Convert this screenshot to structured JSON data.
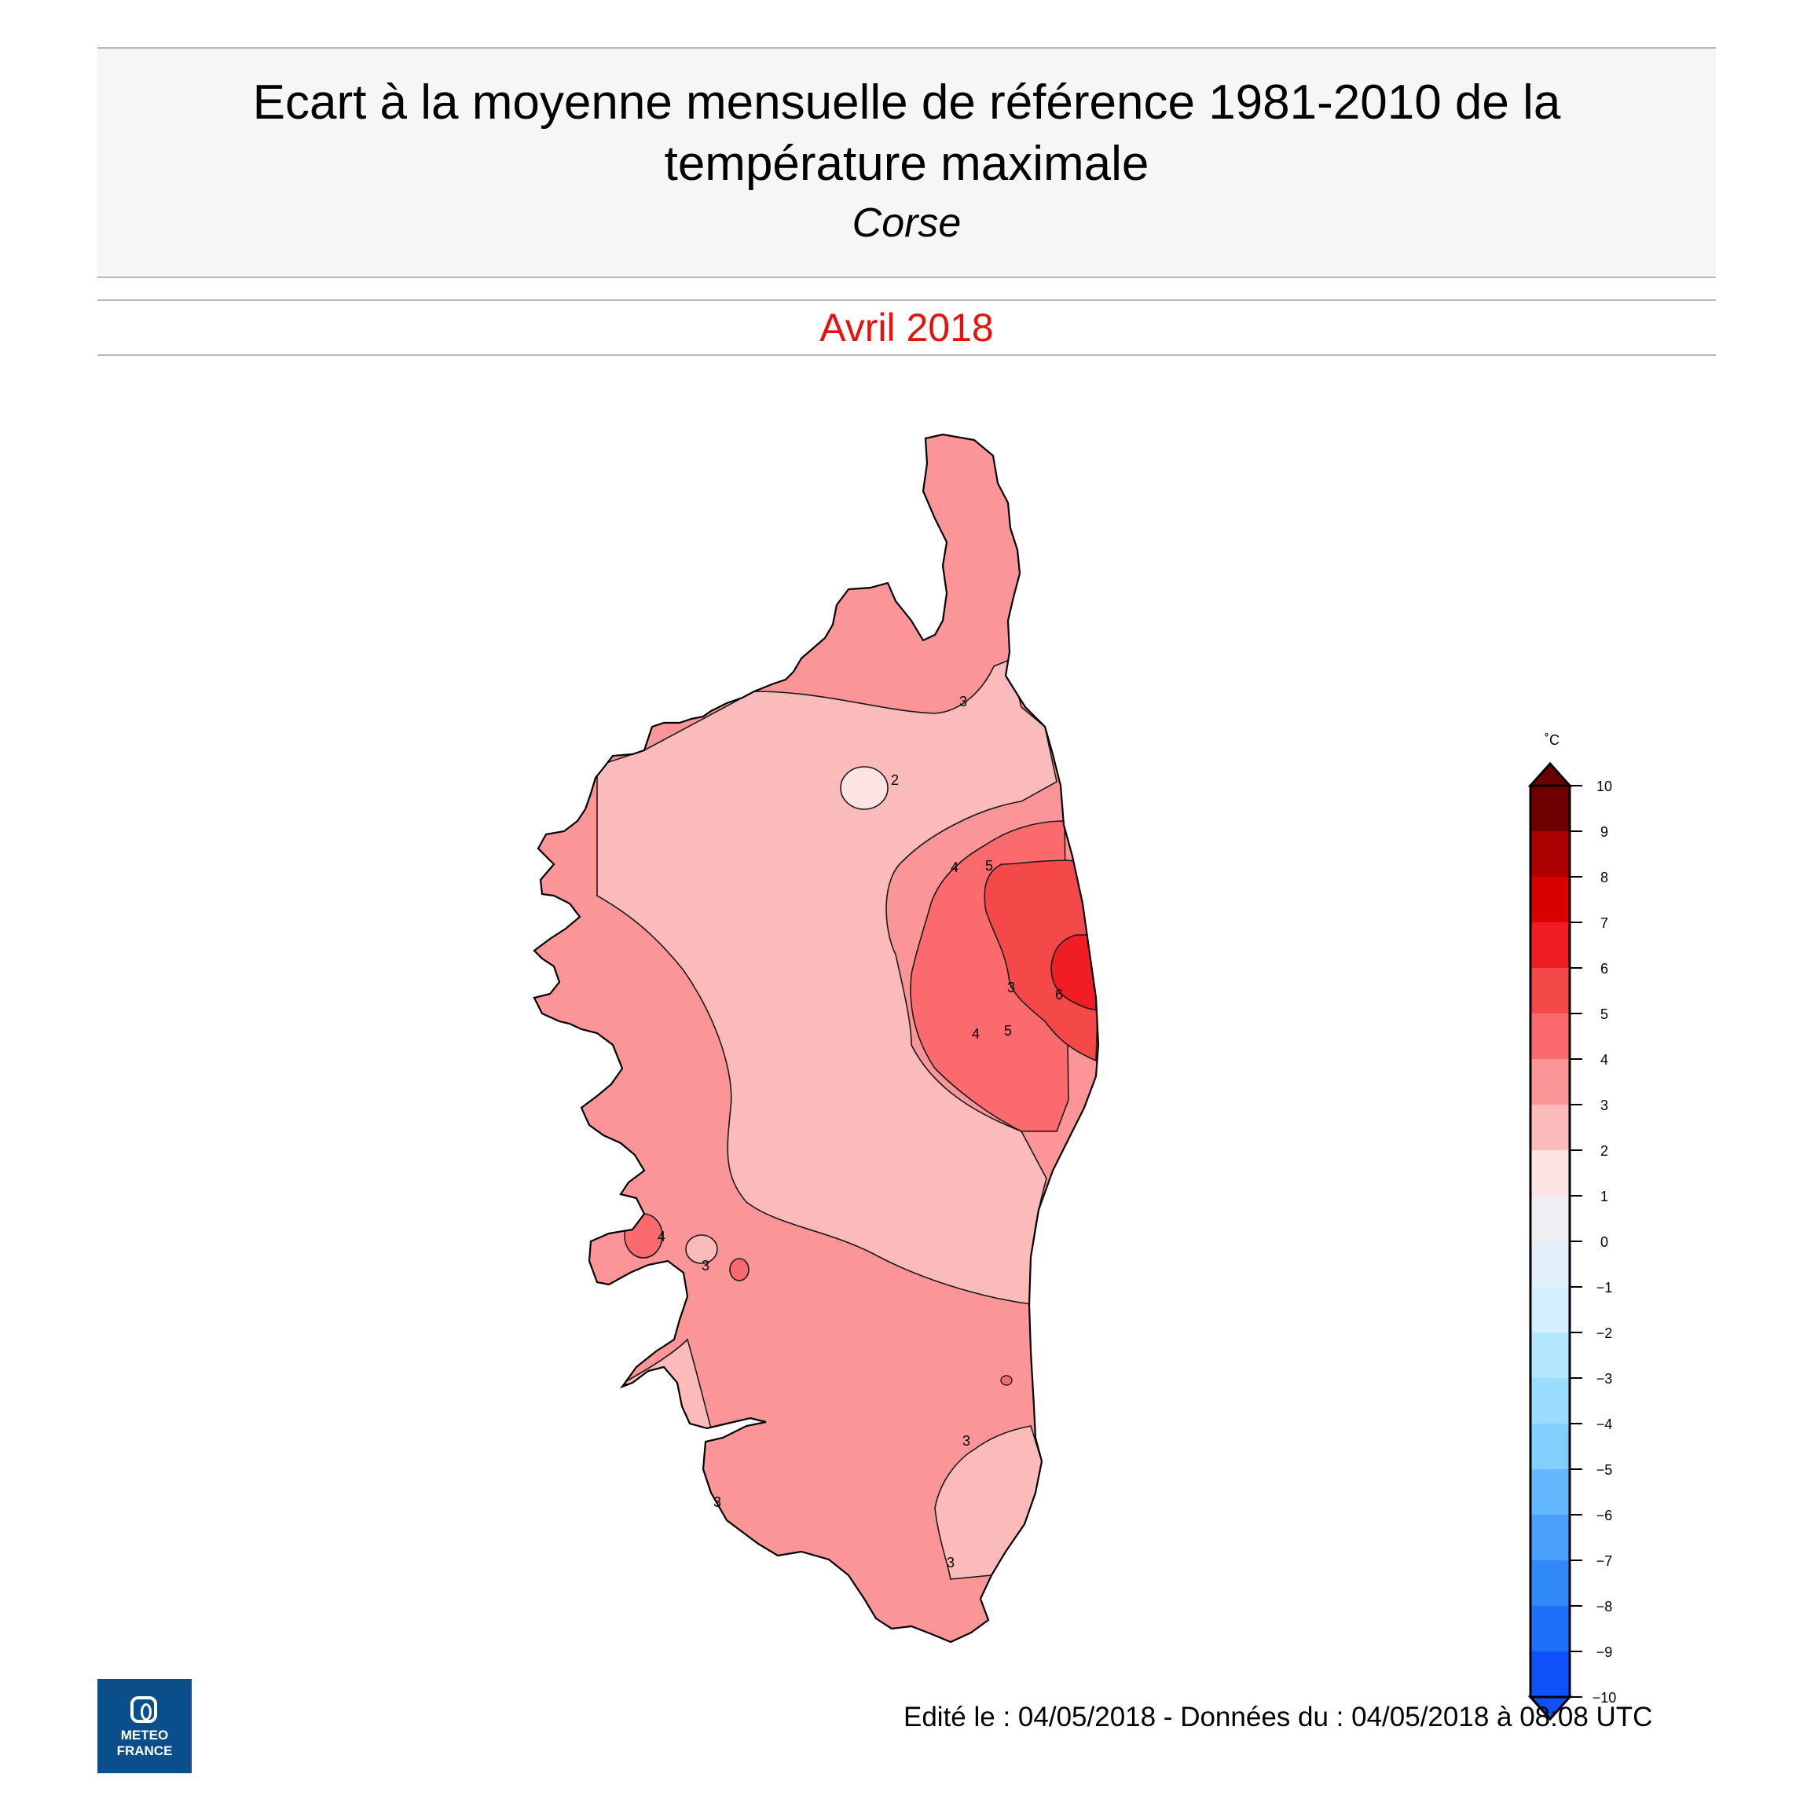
{
  "header": {
    "title_line1": "Ecart à la moyenne mensuelle de référence 1981-2010 de la",
    "title_line2": "température maximale",
    "subtitle": "Corse",
    "period": "Avril 2018"
  },
  "map": {
    "region": "Corse",
    "contour_labels": [
      "2",
      "3",
      "4",
      "5",
      "6",
      "3",
      "4",
      "5",
      "3",
      "4",
      "3",
      "3",
      "3",
      "3"
    ]
  },
  "colorbar": {
    "unit": "˚C",
    "ticks": [
      "10",
      "9",
      "8",
      "7",
      "6",
      "5",
      "4",
      "3",
      "2",
      "1",
      "0",
      "−1",
      "−2",
      "−3",
      "−4",
      "−5",
      "−6",
      "−7",
      "−8",
      "−9",
      "−10"
    ],
    "colors": [
      "#6e0000",
      "#ad0000",
      "#d90000",
      "#f01d24",
      "#f54848",
      "#fb6b6e",
      "#fb9597",
      "#fbbbbb",
      "#fde4e4",
      "#f0eef2",
      "#e2eef8",
      "#d2f0fe",
      "#b3e7fe",
      "#9adcfe",
      "#80cffe",
      "#64b8fd",
      "#4aa1fb",
      "#2f89f9",
      "#1e70fa",
      "#0e51fb"
    ]
  },
  "footer": {
    "edition": "Edité le : 04/05/2018 - Données du : 04/05/2018 à 08:08 UTC",
    "logo_line1": "METEO",
    "logo_line2": "FRANCE"
  }
}
